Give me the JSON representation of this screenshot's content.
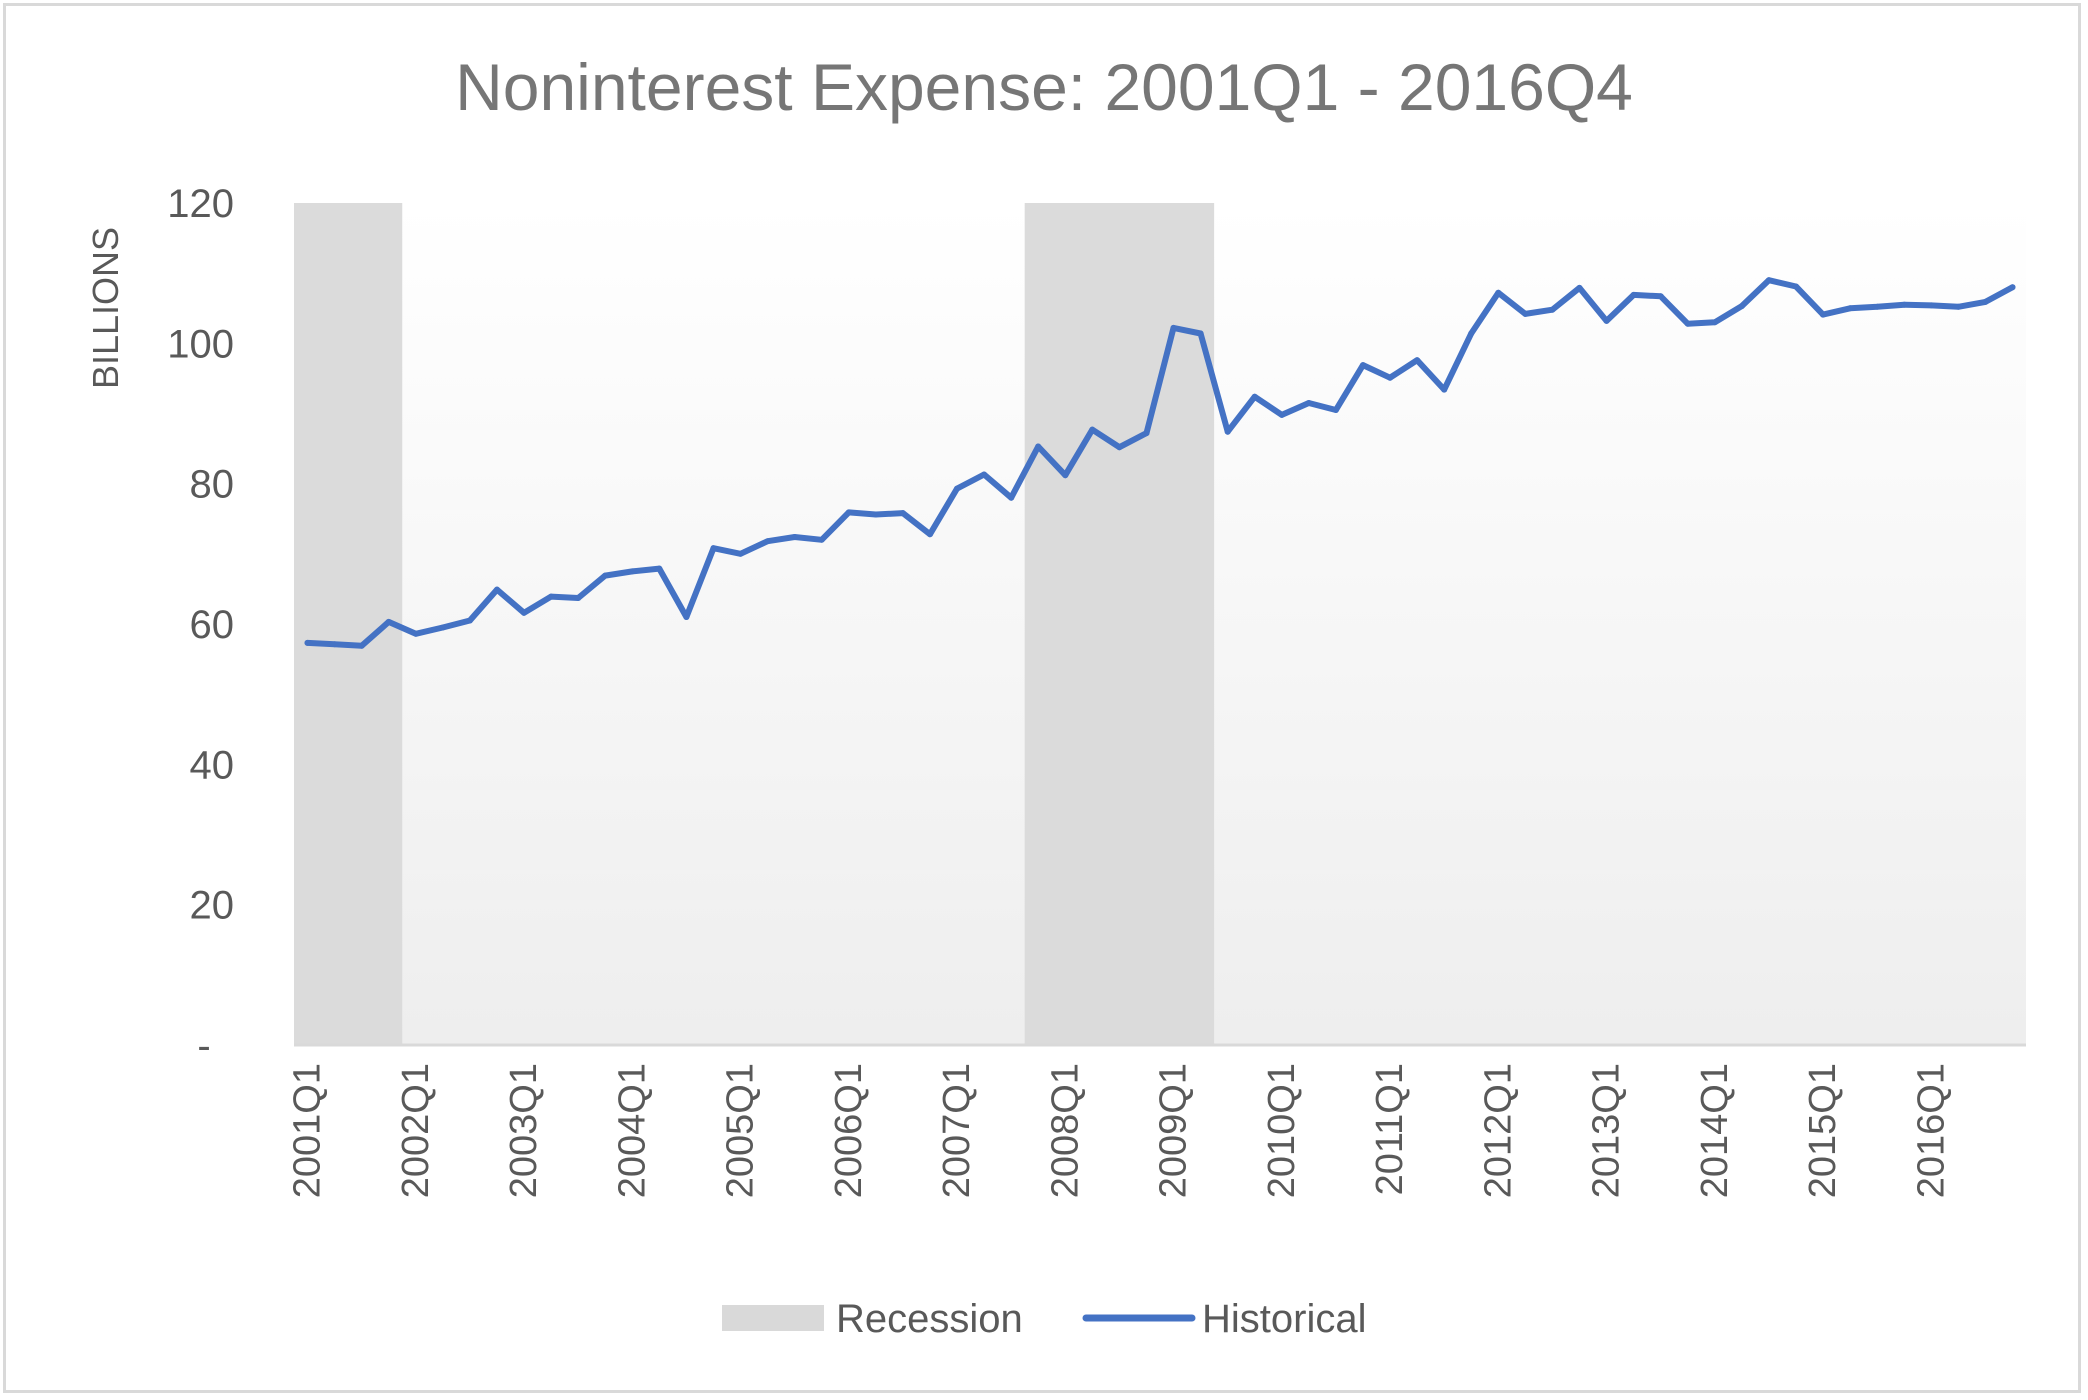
{
  "chart_data": {
    "type": "line",
    "title": "Noninterest Expense: 2001Q1 - 2016Q4",
    "ylabel": "BILLIONS",
    "xlabel": "",
    "ylim": [
      0,
      120
    ],
    "y_ticks": [
      {
        "value": 0,
        "label": "-"
      },
      {
        "value": 20,
        "label": "20"
      },
      {
        "value": 40,
        "label": "40"
      },
      {
        "value": 60,
        "label": "60"
      },
      {
        "value": 80,
        "label": "80"
      },
      {
        "value": 100,
        "label": "100"
      },
      {
        "value": 120,
        "label": "120"
      }
    ],
    "x_tick_labels": [
      "2001Q1",
      "2002Q1",
      "2003Q1",
      "2004Q1",
      "2005Q1",
      "2006Q1",
      "2007Q1",
      "2008Q1",
      "2009Q1",
      "2010Q1",
      "2011Q1",
      "2012Q1",
      "2013Q1",
      "2014Q1",
      "2015Q1",
      "2016Q1"
    ],
    "quarters_count": 64,
    "series": [
      {
        "name": "Historical",
        "color": "#4472c4",
        "values": [
          57.3,
          57.1,
          56.9,
          60.3,
          58.6,
          59.5,
          60.5,
          64.9,
          61.6,
          63.9,
          63.7,
          66.9,
          67.5,
          67.9,
          61.0,
          70.8,
          70.0,
          71.8,
          72.4,
          72.0,
          75.9,
          75.6,
          75.8,
          72.8,
          79.3,
          81.3,
          78.0,
          85.3,
          81.2,
          87.7,
          85.2,
          87.2,
          102.2,
          101.4,
          87.4,
          92.4,
          89.8,
          91.5,
          90.5,
          96.9,
          95.1,
          97.6,
          93.4,
          101.4,
          107.2,
          104.2,
          104.8,
          107.9,
          103.2,
          106.9,
          106.7,
          102.8,
          103.0,
          105.3,
          109.0,
          108.1,
          104.1,
          105.0,
          105.2,
          105.5,
          105.4,
          105.2,
          105.9,
          108.0
        ]
      }
    ],
    "recessions": [
      {
        "label": "Recession",
        "start_quarter": "2001Q1",
        "end_quarter": "2001Q4"
      },
      {
        "label": "Recession",
        "start_quarter": "2007Q4",
        "end_quarter": "2009Q2"
      }
    ],
    "legend": {
      "position": "bottom",
      "entries": [
        {
          "name": "Recession",
          "color": "#d9d9d9"
        },
        {
          "name": "Historical",
          "color": "#4472c4"
        }
      ]
    },
    "grid": false
  }
}
